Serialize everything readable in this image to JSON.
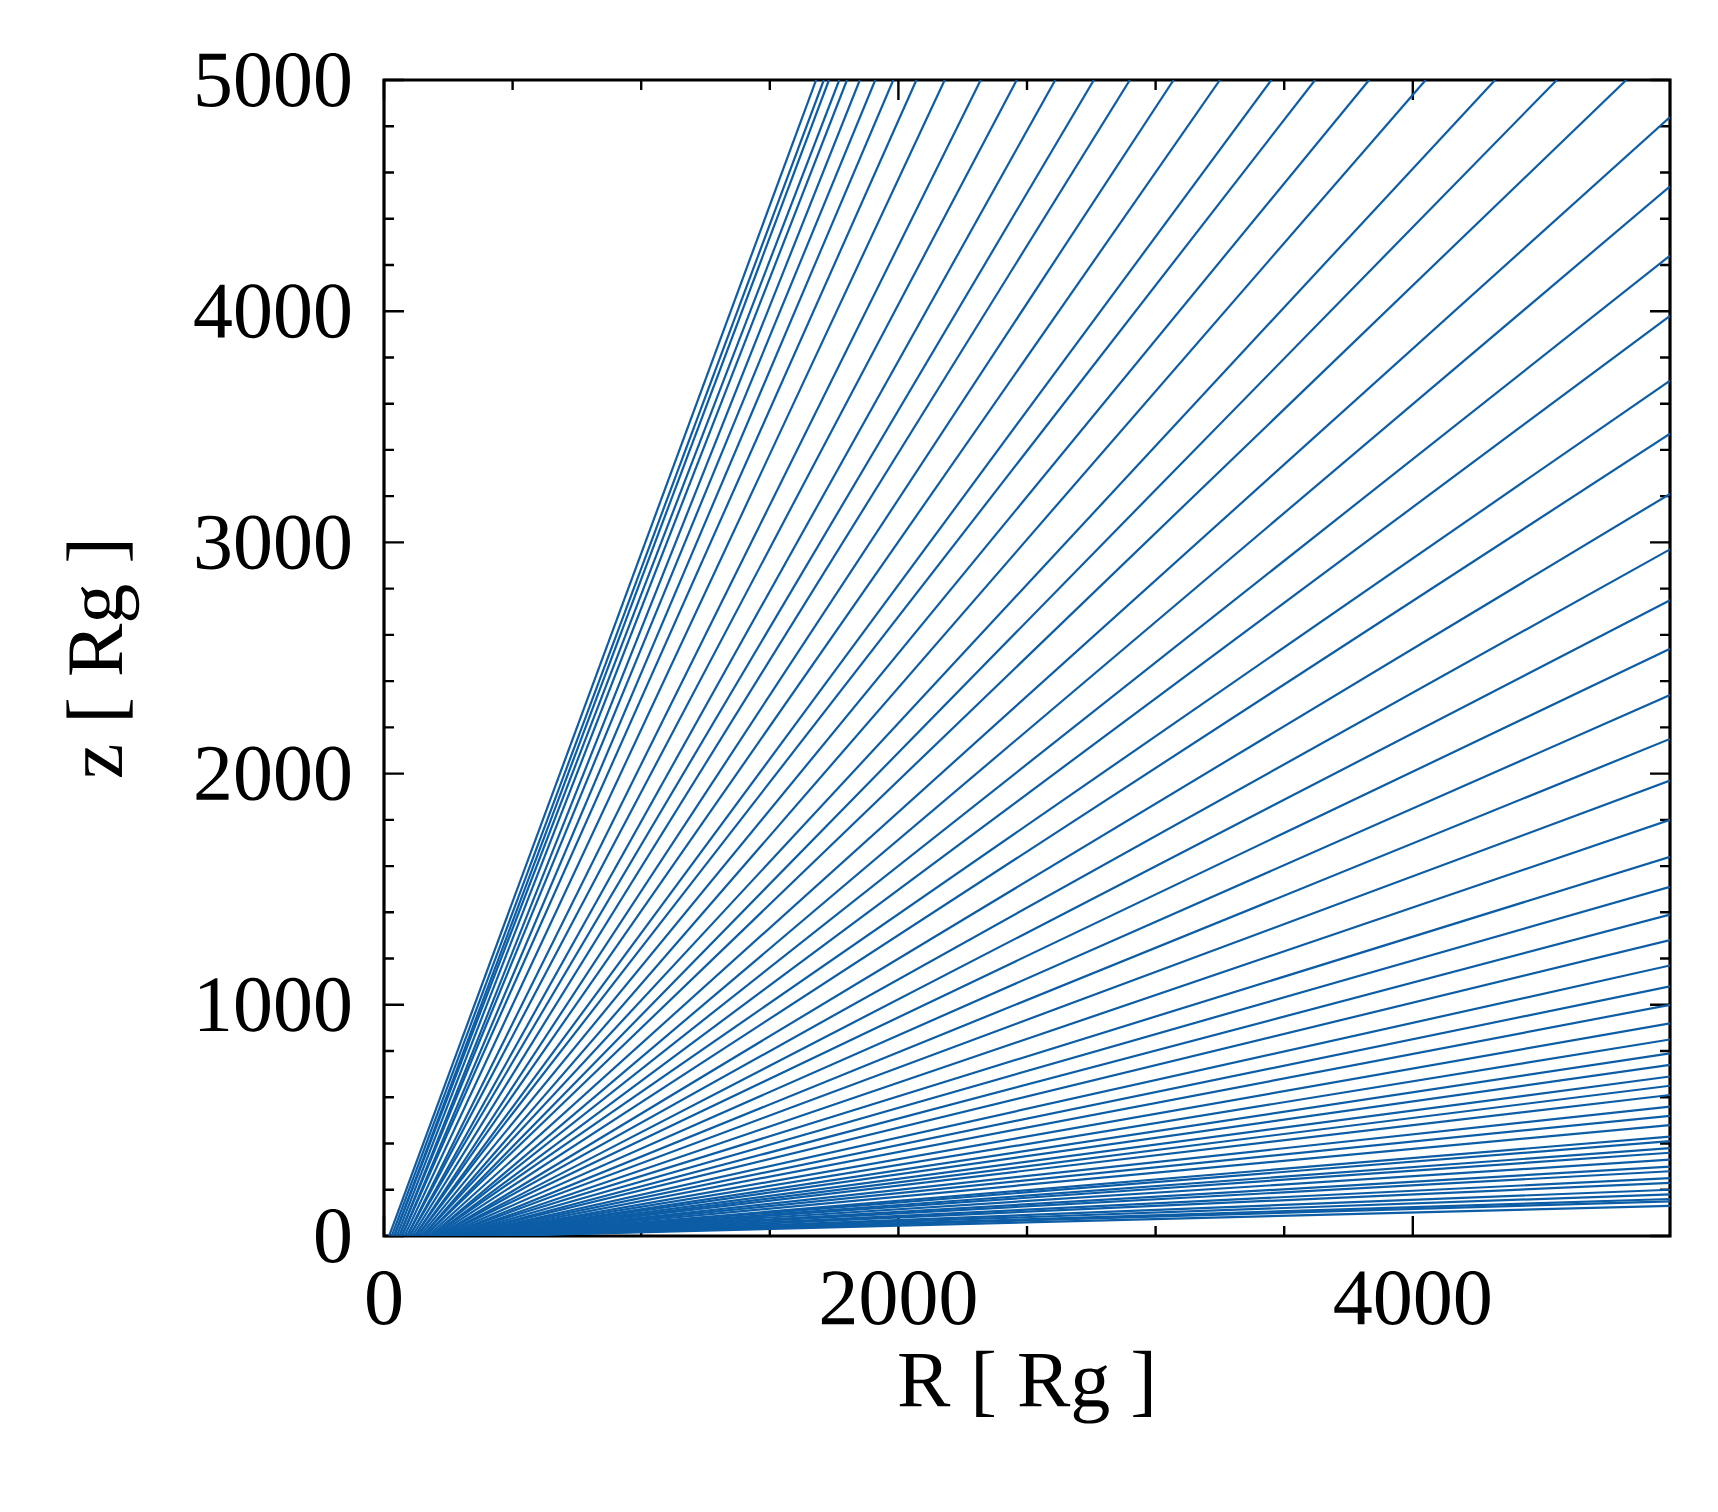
{
  "chart_data": {
    "type": "line",
    "xlabel": "R [ Rg ]",
    "ylabel": "z [ Rg ]",
    "xlim": [
      0,
      5000
    ],
    "ylim": [
      0,
      5000
    ],
    "xticks": [
      0,
      2000,
      4000
    ],
    "yticks": [
      0,
      1000,
      2000,
      3000,
      4000,
      5000
    ],
    "marker": "none",
    "line_style": "solid",
    "series": [
      {
        "color": "#0c5da5",
        "x": [
          20,
          1680
        ],
        "values": [
          0,
          5000
        ]
      },
      {
        "color": "#0c5da5",
        "x": [
          30,
          1710
        ],
        "values": [
          0,
          5000
        ]
      },
      {
        "color": "#0c5da5",
        "x": [
          40,
          1730
        ],
        "values": [
          0,
          5000
        ]
      },
      {
        "color": "#0c5da5",
        "x": [
          40,
          1770
        ],
        "values": [
          0,
          5000
        ]
      },
      {
        "color": "#0c5da5",
        "x": [
          50,
          1800
        ],
        "values": [
          0,
          5000
        ]
      },
      {
        "color": "#0c5da5",
        "x": [
          60,
          1850
        ],
        "values": [
          0,
          5000
        ]
      },
      {
        "color": "#0c5da5",
        "x": [
          60,
          1910
        ],
        "values": [
          0,
          5000
        ]
      },
      {
        "color": "#0c5da5",
        "x": [
          70,
          1980
        ],
        "values": [
          0,
          5000
        ]
      },
      {
        "color": "#0c5da5",
        "x": [
          70,
          2070
        ],
        "values": [
          0,
          5000
        ]
      },
      {
        "color": "#0c5da5",
        "x": [
          80,
          2180
        ],
        "values": [
          0,
          5000
        ]
      },
      {
        "color": "#0c5da5",
        "x": [
          90,
          2320
        ],
        "values": [
          0,
          5000
        ]
      },
      {
        "color": "#0c5da5",
        "x": [
          90,
          2460
        ],
        "values": [
          0,
          5000
        ]
      },
      {
        "color": "#0c5da5",
        "x": [
          100,
          2610
        ],
        "values": [
          0,
          5000
        ]
      },
      {
        "color": "#0c5da5",
        "x": [
          100,
          2760
        ],
        "values": [
          0,
          5000
        ]
      },
      {
        "color": "#0c5da5",
        "x": [
          110,
          2900
        ],
        "values": [
          0,
          5000
        ]
      },
      {
        "color": "#0c5da5",
        "x": [
          120,
          3070
        ],
        "values": [
          0,
          5000
        ]
      },
      {
        "color": "#0c5da5",
        "x": [
          120,
          3250
        ],
        "values": [
          0,
          5000
        ]
      },
      {
        "color": "#0c5da5",
        "x": [
          130,
          3450
        ],
        "values": [
          0,
          5000
        ]
      },
      {
        "color": "#0c5da5",
        "x": [
          130,
          3620
        ],
        "values": [
          0,
          5000
        ]
      },
      {
        "color": "#0c5da5",
        "x": [
          140,
          3830
        ],
        "values": [
          0,
          5000
        ]
      },
      {
        "color": "#0c5da5",
        "x": [
          150,
          4050
        ],
        "values": [
          0,
          5000
        ]
      },
      {
        "color": "#0c5da5",
        "x": [
          150,
          4320
        ],
        "values": [
          0,
          5000
        ]
      },
      {
        "color": "#0c5da5",
        "x": [
          160,
          4560
        ],
        "values": [
          0,
          5000
        ]
      },
      {
        "color": "#0c5da5",
        "x": [
          160,
          4830
        ],
        "values": [
          0,
          5000
        ]
      },
      {
        "color": "#0c5da5",
        "x": [
          170,
          5000
        ],
        "values": [
          0,
          4840
        ]
      },
      {
        "color": "#0c5da5",
        "x": [
          180,
          5000
        ],
        "values": [
          0,
          4540
        ]
      },
      {
        "color": "#0c5da5",
        "x": [
          180,
          5000
        ],
        "values": [
          0,
          4240
        ]
      },
      {
        "color": "#0c5da5",
        "x": [
          190,
          5000
        ],
        "values": [
          0,
          3980
        ]
      },
      {
        "color": "#0c5da5",
        "x": [
          190,
          5000
        ],
        "values": [
          0,
          3700
        ]
      },
      {
        "color": "#0c5da5",
        "x": [
          200,
          5000
        ],
        "values": [
          0,
          3470
        ]
      },
      {
        "color": "#0c5da5",
        "x": [
          210,
          5000
        ],
        "values": [
          0,
          3210
        ]
      },
      {
        "color": "#0c5da5",
        "x": [
          210,
          5000
        ],
        "values": [
          0,
          2970
        ]
      },
      {
        "color": "#0c5da5",
        "x": [
          220,
          5000
        ],
        "values": [
          0,
          2750
        ]
      },
      {
        "color": "#0c5da5",
        "x": [
          220,
          5000
        ],
        "values": [
          0,
          2540
        ]
      },
      {
        "color": "#0c5da5",
        "x": [
          230,
          5000
        ],
        "values": [
          0,
          2340
        ]
      },
      {
        "color": "#0c5da5",
        "x": [
          240,
          5000
        ],
        "values": [
          0,
          2150
        ]
      },
      {
        "color": "#0c5da5",
        "x": [
          240,
          5000
        ],
        "values": [
          0,
          1970
        ]
      },
      {
        "color": "#0c5da5",
        "x": [
          250,
          5000
        ],
        "values": [
          0,
          1800
        ]
      },
      {
        "color": "#0c5da5",
        "x": [
          250,
          5000
        ],
        "values": [
          0,
          1640
        ]
      },
      {
        "color": "#0c5da5",
        "x": [
          260,
          5000
        ],
        "values": [
          0,
          1510
        ]
      },
      {
        "color": "#0c5da5",
        "x": [
          270,
          5000
        ],
        "values": [
          0,
          1390
        ]
      },
      {
        "color": "#0c5da5",
        "x": [
          270,
          5000
        ],
        "values": [
          0,
          1280
        ]
      },
      {
        "color": "#0c5da5",
        "x": [
          280,
          5000
        ],
        "values": [
          0,
          1170
        ]
      },
      {
        "color": "#0c5da5",
        "x": [
          280,
          5000
        ],
        "values": [
          0,
          1080
        ]
      },
      {
        "color": "#0c5da5",
        "x": [
          290,
          5000
        ],
        "values": [
          0,
          1000
        ]
      },
      {
        "color": "#0c5da5",
        "x": [
          300,
          5000
        ],
        "values": [
          0,
          920
        ]
      },
      {
        "color": "#0c5da5",
        "x": [
          300,
          5000
        ],
        "values": [
          0,
          850
        ]
      },
      {
        "color": "#0c5da5",
        "x": [
          310,
          5000
        ],
        "values": [
          0,
          790
        ]
      },
      {
        "color": "#0c5da5",
        "x": [
          310,
          5000
        ],
        "values": [
          0,
          740
        ]
      },
      {
        "color": "#0c5da5",
        "x": [
          320,
          5000
        ],
        "values": [
          0,
          690
        ]
      },
      {
        "color": "#0c5da5",
        "x": [
          330,
          5000
        ],
        "values": [
          0,
          650
        ]
      },
      {
        "color": "#0c5da5",
        "x": [
          330,
          5000
        ],
        "values": [
          0,
          610
        ]
      },
      {
        "color": "#0c5da5",
        "x": [
          340,
          5000
        ],
        "values": [
          0,
          560
        ]
      },
      {
        "color": "#0c5da5",
        "x": [
          340,
          5000
        ],
        "values": [
          0,
          520
        ]
      },
      {
        "color": "#0c5da5",
        "x": [
          350,
          5000
        ],
        "values": [
          0,
          480
        ]
      },
      {
        "color": "#0c5da5",
        "x": [
          360,
          5000
        ],
        "values": [
          0,
          430
        ]
      },
      {
        "color": "#0c5da5",
        "x": [
          360,
          5000
        ],
        "values": [
          0,
          410
        ]
      },
      {
        "color": "#0c5da5",
        "x": [
          370,
          5000
        ],
        "values": [
          0,
          380
        ]
      },
      {
        "color": "#0c5da5",
        "x": [
          370,
          5000
        ],
        "values": [
          0,
          360
        ]
      },
      {
        "color": "#0c5da5",
        "x": [
          380,
          5000
        ],
        "values": [
          0,
          330
        ]
      },
      {
        "color": "#0c5da5",
        "x": [
          390,
          5000
        ],
        "values": [
          0,
          300
        ]
      },
      {
        "color": "#0c5da5",
        "x": [
          390,
          5000
        ],
        "values": [
          0,
          280
        ]
      },
      {
        "color": "#0c5da5",
        "x": [
          400,
          5000
        ],
        "values": [
          0,
          250
        ]
      },
      {
        "color": "#0c5da5",
        "x": [
          400,
          5000
        ],
        "values": [
          0,
          230
        ]
      },
      {
        "color": "#0c5da5",
        "x": [
          410,
          5000
        ],
        "values": [
          0,
          200
        ]
      },
      {
        "color": "#0c5da5",
        "x": [
          420,
          5000
        ],
        "values": [
          0,
          180
        ]
      },
      {
        "color": "#0c5da5",
        "x": [
          420,
          5000
        ],
        "values": [
          0,
          160
        ]
      },
      {
        "color": "#0c5da5",
        "x": [
          430,
          5000
        ],
        "values": [
          0,
          150
        ]
      },
      {
        "color": "#0c5da5",
        "x": [
          430,
          5000
        ],
        "values": [
          0,
          130
        ]
      }
    ]
  }
}
